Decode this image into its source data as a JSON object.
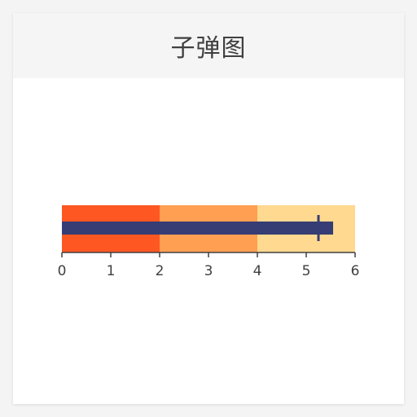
{
  "card": {
    "title": "子弹图"
  },
  "chart_data": {
    "type": "bullet",
    "title": "子弹图",
    "ranges": [
      {
        "from": 0,
        "to": 2,
        "color": "#fe5722"
      },
      {
        "from": 2,
        "to": 4,
        "color": "#fe9f52"
      },
      {
        "from": 4,
        "to": 6,
        "color": "#ffd98f"
      }
    ],
    "measure": {
      "value": 5.55,
      "color": "#363c74"
    },
    "target": {
      "value": 5.25,
      "color": "#363c74"
    },
    "xlim": [
      0,
      6
    ],
    "ticks": [
      "0",
      "1",
      "2",
      "3",
      "4",
      "5",
      "6"
    ],
    "grid": false
  }
}
